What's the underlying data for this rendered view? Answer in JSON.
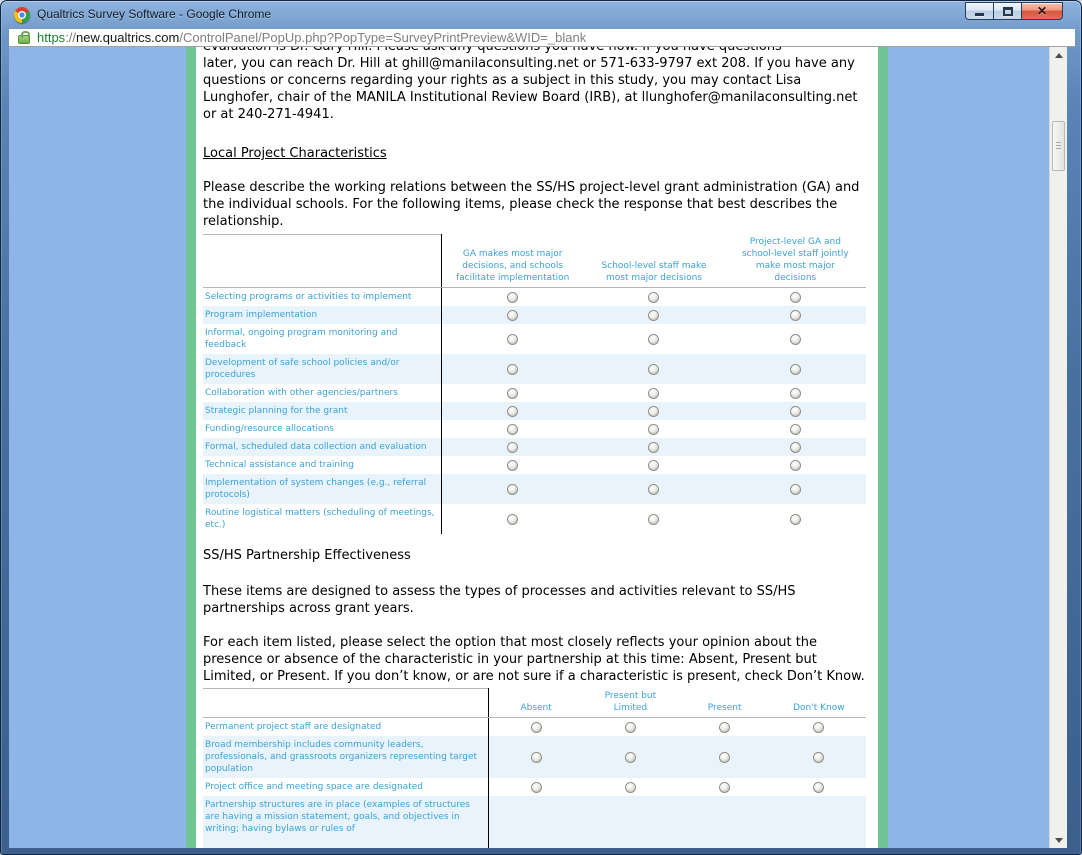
{
  "window": {
    "title": "Qualtrics Survey Software - Google Chrome"
  },
  "address_bar": {
    "protocol": "https",
    "scheme_separator": "://",
    "host": "new.qualtrics.com",
    "path": "/ControlPanel/PopUp.php?PopType=SurveyPrintPreview&WID=_blank"
  },
  "survey": {
    "intro": {
      "clipped_line": "evaluation is Dr. Gary Hill. Please ask any questions you have now. If you have questions",
      "text": "later, you can reach Dr. Hill at ghill@manilaconsulting.net or 571-633-9797 ext 208. If you have any questions or concerns regarding your rights as a subject in this study, you may contact Lisa Lunghofer, chair of the MANILA Institutional Review Board (IRB), at llunghofer@manilaconsulting.net or at 240-271-4941."
    },
    "section1": {
      "heading": "Local Project Characteristics",
      "description": "Please describe the working relations between the SS/HS project-level grant administration (GA) and the individual schools. For the following items, please check the response that best describes the relationship.",
      "matrix": {
        "columns": [
          [
            "GA makes most major",
            "decisions, and schools",
            "facilitate implementation"
          ],
          [
            "School-level staff make",
            "most major decisions"
          ],
          [
            "Project-level GA and",
            "school-level staff jointly",
            "make most major",
            "decisions"
          ]
        ],
        "rows": [
          "Selecting programs or activities to implement",
          "Program implementation",
          "Informal, ongoing program monitoring and feedback",
          "Development of safe school policies and/or procedures",
          "Collaboration with other agencies/partners",
          "Strategic planning for the grant",
          "Funding/resource allocations",
          "Formal, scheduled data collection and evaluation",
          "Technical assistance and training",
          "Implementation of system changes (e.g., referral protocols)",
          "Routine logistical matters (scheduling of meetings, etc.)"
        ]
      }
    },
    "section2": {
      "heading": "SS/HS Partnership Effectiveness",
      "description1": "These items are designed to assess the types of processes and activities relevant to SS/HS partnerships across grant years.",
      "description2": "For each item listed, please select the option that most closely reflects your opinion about the presence or absence of the characteristic in your partnership at this time: Absent, Present but Limited, or Present. If you don’t know, or are not sure if a characteristic is present, check Don’t Know.",
      "matrix": {
        "columns": [
          [
            "Absent"
          ],
          [
            "Present but",
            "Limited"
          ],
          [
            "Present"
          ],
          [
            "Don't Know"
          ]
        ],
        "rows": [
          "Permanent project staff are designated",
          "Broad membership includes community leaders, professionals, and grassroots organizers representing target population",
          "Project office and meeting space are designated",
          "Partnership structures are in place (examples of structures are having a mission statement, goals, and objectives in writing; having bylaws or rules of"
        ]
      }
    }
  },
  "colors": {
    "page_background": "#8db6e8",
    "content_border_green": "#6fc694",
    "matrix_text_blue": "#3aa2dc",
    "row_stripe": "#e9f3fb",
    "titlebar_blue": "#5b83b4",
    "close_button_red": "#d5563a",
    "url_https_green": "#188038"
  }
}
